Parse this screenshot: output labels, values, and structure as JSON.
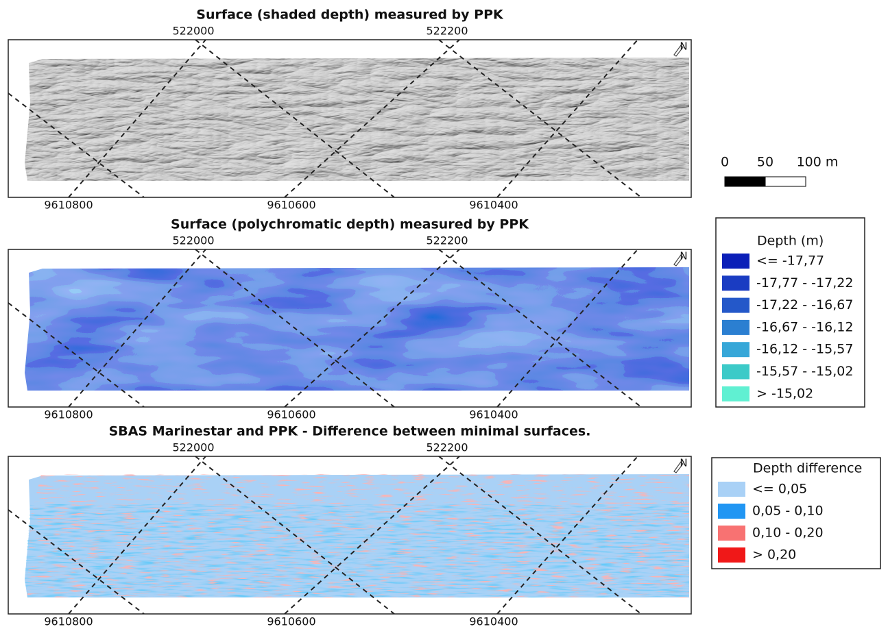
{
  "panels": [
    {
      "title": "Surface (shaded depth) measured by PPK",
      "top_labels": [
        "522000",
        "522200"
      ],
      "bottom_labels": [
        "9610800",
        "9610600",
        "9610400"
      ]
    },
    {
      "title": "Surface (polychromatic depth) measured by PPK",
      "top_labels": [
        "522000",
        "522200"
      ],
      "bottom_labels": [
        "9610800",
        "9610600",
        "9610400"
      ]
    },
    {
      "title": "SBAS Marinestar and PPK - Difference between minimal surfaces.",
      "top_labels": [
        "522000",
        "522200"
      ],
      "bottom_labels": [
        "9610800",
        "9610600",
        "9610400"
      ]
    }
  ],
  "north_label": "N",
  "scale_bar": {
    "labels": [
      "0",
      "50",
      "100 m"
    ]
  },
  "legends": [
    {
      "title": "Depth (m)",
      "items": [
        {
          "label": "<= -17,77",
          "color": "#0b1fb8"
        },
        {
          "label": "-17,77 - -17,22",
          "color": "#1a3cc2"
        },
        {
          "label": "-17,22 - -16,67",
          "color": "#2458c9"
        },
        {
          "label": "-16,67 - -16,12",
          "color": "#2b7fd1"
        },
        {
          "label": "-16,12 - -15,57",
          "color": "#36a7d8"
        },
        {
          "label": "-15,57 - -15,02",
          "color": "#3ccac8"
        },
        {
          "label": "> -15,02",
          "color": "#60f0d2"
        }
      ]
    },
    {
      "title": "Depth difference",
      "items": [
        {
          "label": "<= 0,05",
          "color": "#a9d1f6"
        },
        {
          "label": "0,05 - 0,10",
          "color": "#2196f3"
        },
        {
          "label": "0,10 - 0,20",
          "color": "#f87272"
        },
        {
          "label": "> 0,20",
          "color": "#f01818"
        }
      ]
    }
  ]
}
